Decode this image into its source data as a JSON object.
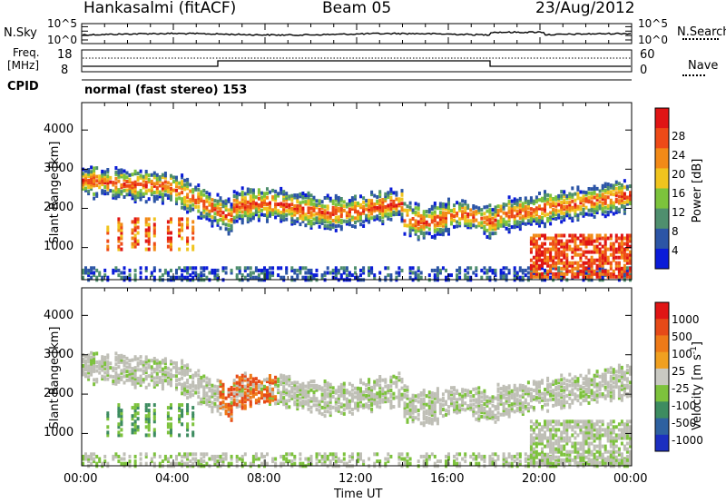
{
  "header": {
    "title": "Hankasalmi (fitACF)",
    "beam": "Beam 05",
    "date": "23/Aug/2012"
  },
  "noise_panel": {
    "left_label": "N.Sky",
    "left_ticks": [
      "10^5",
      "10^0"
    ],
    "right_ticks": [
      "10^5",
      "10^0"
    ],
    "right_label": "N.Search"
  },
  "freq_panel": {
    "left_label_1": "Freq.",
    "left_label_2": "[MHz]",
    "left_ticks": [
      "18",
      "8"
    ],
    "right_ticks": [
      "60",
      "0"
    ],
    "right_label": "Nave"
  },
  "cpid_panel": {
    "label": "CPID",
    "text": "normal (fast stereo) 153"
  },
  "colors": {
    "power_scale": [
      "#0a1bd8",
      "#2c55a6",
      "#4f8f6e",
      "#7cc33c",
      "#f0c41e",
      "#f28a17",
      "#ee4a17",
      "#e01515"
    ],
    "velocity_scale": [
      "#1c2fc0",
      "#2e61a0",
      "#3d8c60",
      "#7dc23d",
      "#c9c9c2",
      "#f0a020",
      "#ee7a18",
      "#e64a18",
      "#e01515"
    ],
    "ground_scatter": "#bfbfb6"
  },
  "chart_data": [
    {
      "type": "heatmap",
      "title": "",
      "xlabel": "",
      "ylabel": "Slant Range [km]",
      "x_ticks": [
        "00:00",
        "04:00",
        "08:00",
        "12:00",
        "16:00",
        "20:00",
        "00:00"
      ],
      "y_ticks": [
        "1000",
        "2000",
        "3000",
        "4000"
      ],
      "xlim_hours": [
        0,
        24
      ],
      "ylim_km": [
        180,
        4700
      ],
      "colorbar": {
        "label": "Power [dB]",
        "ticks": [
          "4",
          "8",
          "12",
          "16",
          "20",
          "24",
          "28"
        ],
        "range": [
          0,
          30
        ]
      }
    },
    {
      "type": "heatmap",
      "title": "",
      "xlabel": "Time UT",
      "ylabel": "Slant Range [km]",
      "x_ticks": [
        "00:00",
        "04:00",
        "08:00",
        "12:00",
        "16:00",
        "20:00",
        "00:00"
      ],
      "y_ticks": [
        "1000",
        "2000",
        "3000",
        "4000"
      ],
      "xlim_hours": [
        0,
        24
      ],
      "ylim_km": [
        180,
        4700
      ],
      "colorbar": {
        "label": "Velocity [m s",
        "label_sup": "-1",
        "label_end": "]",
        "ticks": [
          "1000",
          "500",
          "100",
          "25",
          "-25",
          "-100",
          "-500",
          "-1000"
        ]
      }
    }
  ]
}
